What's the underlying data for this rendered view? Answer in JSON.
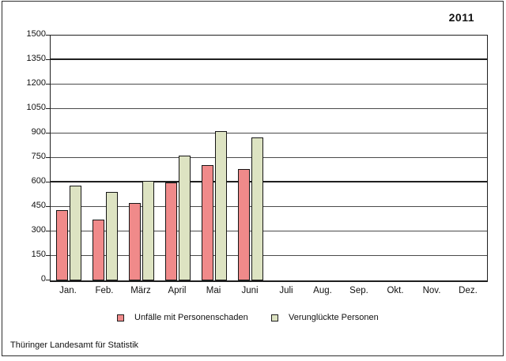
{
  "header": {
    "year": "2011"
  },
  "chart_data": {
    "type": "bar",
    "title": "2011",
    "categories": [
      "Jan.",
      "Feb.",
      "März",
      "April",
      "Mai",
      "Juni",
      "Juli",
      "Aug.",
      "Sep.",
      "Okt.",
      "Nov.",
      "Dez."
    ],
    "series": [
      {
        "name": "Unfälle mit Personenschaden",
        "color": "#f08a8a",
        "values": [
          430,
          375,
          475,
          600,
          705,
          680,
          null,
          null,
          null,
          null,
          null,
          null
        ]
      },
      {
        "name": "Verunglückte Personen",
        "color": "#dde3c2",
        "values": [
          580,
          540,
          610,
          765,
          915,
          875,
          null,
          null,
          null,
          null,
          null,
          null
        ]
      }
    ],
    "xlabel": "",
    "ylabel": "",
    "ylim": [
      0,
      1500
    ],
    "ytick_interval": 150,
    "yticks": [
      0,
      150,
      300,
      450,
      600,
      750,
      900,
      1050,
      1200,
      1350,
      1500
    ],
    "emphasized_gridlines": [
      600,
      1350
    ],
    "grid": true,
    "legend_position": "bottom",
    "source": "Thüringer Landesamt für Statistik"
  }
}
